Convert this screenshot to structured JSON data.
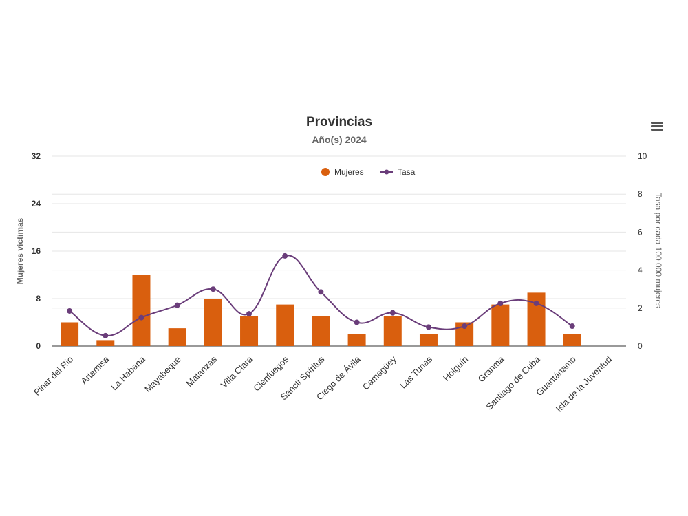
{
  "chart_data": {
    "type": "bar",
    "title": "Provincias",
    "subtitle": "Año(s) 2024",
    "categories": [
      "Pinar del Rio",
      "Artemisa",
      "La Habana",
      "Mayabeque",
      "Matanzas",
      "Villa Clara",
      "Cienfuegos",
      "Sancti Spíritus",
      "Ciego de Ávila",
      "Camagüey",
      "Las Tunas",
      "Holguín",
      "Granma",
      "Santiago de Cuba",
      "Guantánamo",
      "Isla de la Juventud"
    ],
    "ylabel": "Mujeres víctimas",
    "y2label": "Tasa por cada 100 000 mujeres",
    "ylim": [
      0,
      32
    ],
    "y2lim": [
      0,
      10
    ],
    "yticks": [
      "0",
      "8",
      "16",
      "24",
      "32"
    ],
    "y2ticks": [
      "0",
      "2",
      "4",
      "6",
      "8",
      "10"
    ],
    "grid": true,
    "legend_position": "top-center",
    "series": [
      {
        "name": "Mujeres",
        "type": "bar",
        "axis": "left",
        "color": "#d95f0e",
        "values": [
          4,
          1,
          12,
          3,
          8,
          5,
          7,
          5,
          2,
          5,
          2,
          4,
          7,
          9,
          2,
          0
        ]
      },
      {
        "name": "Tasa",
        "type": "line",
        "axis": "right",
        "color": "#6a3d7a",
        "values": [
          1.85,
          0.55,
          1.5,
          2.15,
          3.0,
          1.7,
          4.75,
          2.85,
          1.25,
          1.75,
          1.0,
          1.05,
          2.25,
          2.25,
          1.05,
          null
        ]
      }
    ]
  }
}
